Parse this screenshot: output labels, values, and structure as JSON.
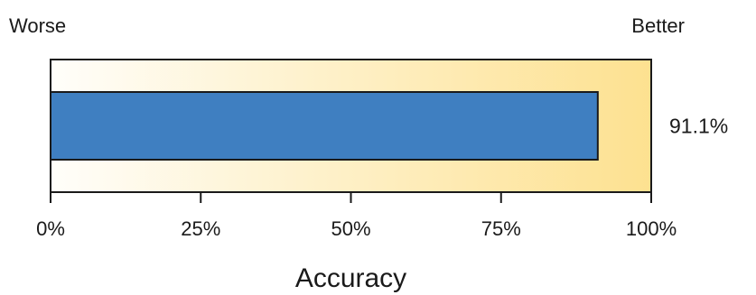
{
  "labels": {
    "worse": "Worse",
    "better": "Better"
  },
  "chart_data": {
    "type": "bar",
    "orientation": "horizontal",
    "subtype": "bullet",
    "value": 91.1,
    "value_label": "91.1%",
    "xlabel": "Accuracy",
    "xlim": [
      0,
      100
    ],
    "ticks": [
      0,
      25,
      50,
      75,
      100
    ],
    "tick_labels": [
      "0%",
      "25%",
      "50%",
      "75%",
      "100%"
    ],
    "qualitative_range": {
      "low_end": "Worse",
      "high_end": "Better"
    },
    "grid": false,
    "legend": "none",
    "colors": {
      "bar_fill": "#3f7fc1",
      "bar_stroke": "#1a1a1a",
      "background_start": "#fffefa",
      "background_end": "#fde190",
      "axis": "#1a1a1a"
    }
  }
}
